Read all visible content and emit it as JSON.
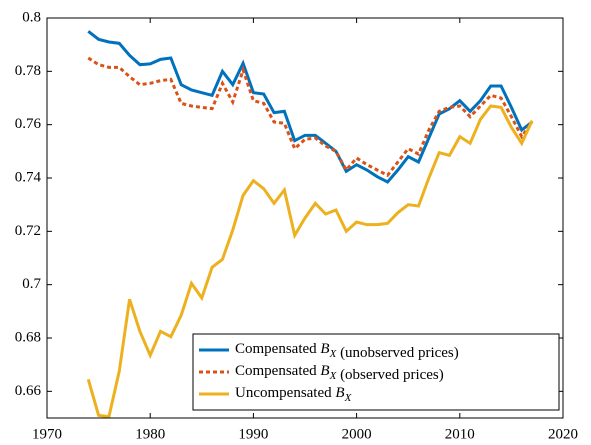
{
  "chart_data": {
    "type": "line",
    "x": [
      1974,
      1975,
      1976,
      1977,
      1978,
      1979,
      1980,
      1981,
      1982,
      1983,
      1984,
      1985,
      1986,
      1987,
      1988,
      1989,
      1990,
      1991,
      1992,
      1993,
      1994,
      1995,
      1996,
      1997,
      1998,
      1999,
      2000,
      2001,
      2002,
      2003,
      2004,
      2005,
      2006,
      2007,
      2008,
      2009,
      2010,
      2011,
      2012,
      2013,
      2014,
      2015,
      2016,
      2017
    ],
    "series": [
      {
        "name": "Compensated B_X (unobserved prices)",
        "color": "#0072bd",
        "dash": false,
        "values": [
          0.795,
          0.792,
          0.791,
          0.7905,
          0.786,
          0.7825,
          0.7828,
          0.7845,
          0.785,
          0.775,
          0.773,
          0.772,
          0.771,
          0.78,
          0.775,
          0.783,
          0.772,
          0.7715,
          0.7645,
          0.765,
          0.754,
          0.756,
          0.756,
          0.753,
          0.75,
          0.7425,
          0.745,
          0.743,
          0.7405,
          0.7385,
          0.743,
          0.748,
          0.746,
          0.755,
          0.764,
          0.766,
          0.769,
          0.765,
          0.769,
          0.7745,
          0.7745,
          0.7665,
          0.758,
          0.761
        ]
      },
      {
        "name": "Compensated B_X (observed prices)",
        "color": "#d95319",
        "dash": true,
        "values": [
          0.785,
          0.7825,
          0.7815,
          0.7815,
          0.778,
          0.775,
          0.7755,
          0.7765,
          0.777,
          0.768,
          0.767,
          0.7665,
          0.766,
          0.7755,
          0.7685,
          0.7805,
          0.769,
          0.768,
          0.761,
          0.7605,
          0.751,
          0.7545,
          0.755,
          0.752,
          0.75,
          0.743,
          0.7475,
          0.745,
          0.743,
          0.741,
          0.746,
          0.751,
          0.749,
          0.758,
          0.765,
          0.7665,
          0.767,
          0.763,
          0.767,
          0.771,
          0.77,
          0.763,
          0.7555,
          0.761
        ]
      },
      {
        "name": "Uncompensated B_X",
        "color": "#edb120",
        "dash": false,
        "values": [
          0.6645,
          0.651,
          0.6505,
          0.6675,
          0.6945,
          0.6825,
          0.6735,
          0.6825,
          0.6805,
          0.6885,
          0.7005,
          0.695,
          0.7065,
          0.7095,
          0.7205,
          0.7335,
          0.739,
          0.736,
          0.7305,
          0.7355,
          0.7185,
          0.725,
          0.7305,
          0.7265,
          0.728,
          0.72,
          0.7235,
          0.7225,
          0.7225,
          0.723,
          0.727,
          0.73,
          0.7295,
          0.74,
          0.7495,
          0.7485,
          0.7555,
          0.753,
          0.762,
          0.767,
          0.7665,
          0.759,
          0.753,
          0.7615
        ]
      }
    ],
    "xlim": [
      1970,
      2020
    ],
    "xticks": [
      1970,
      1980,
      1990,
      2000,
      2010,
      2020
    ],
    "ylim": [
      0.65,
      0.8
    ],
    "yticks": [
      0.66,
      0.68,
      0.7,
      0.72,
      0.74,
      0.76,
      0.78,
      0.8
    ],
    "legend": "lower-right"
  }
}
